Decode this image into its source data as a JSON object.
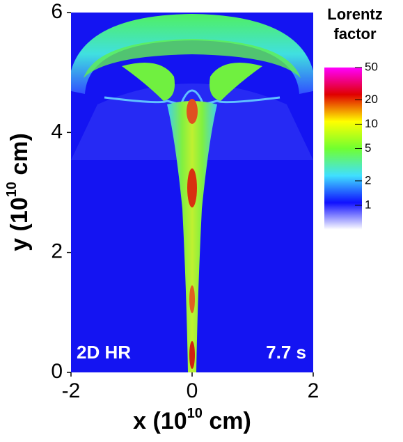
{
  "chart_data": {
    "type": "heatmap",
    "xlabel": {
      "base": "x (10",
      "exp": "10",
      "unit": " cm)"
    },
    "ylabel": {
      "base": "y (10",
      "exp": "10",
      "unit": " cm)"
    },
    "xlim": [
      -2,
      2
    ],
    "xticks": [
      -2,
      0,
      2
    ],
    "ylim": [
      0,
      6
    ],
    "yticks": [
      0,
      2,
      4,
      6
    ],
    "annotations": [
      "2D HR",
      "7.7 s"
    ],
    "colorbar": {
      "title": [
        "Lorentz",
        "factor"
      ],
      "log": true,
      "clim": [
        0.5,
        50
      ],
      "ticks": [
        1,
        2,
        5,
        10,
        20,
        50
      ],
      "colormap": [
        "#ffffff",
        "#1010ff",
        "#40e0ff",
        "#70ff30",
        "#ffff00",
        "#e00000",
        "#ff00ff"
      ]
    }
  }
}
